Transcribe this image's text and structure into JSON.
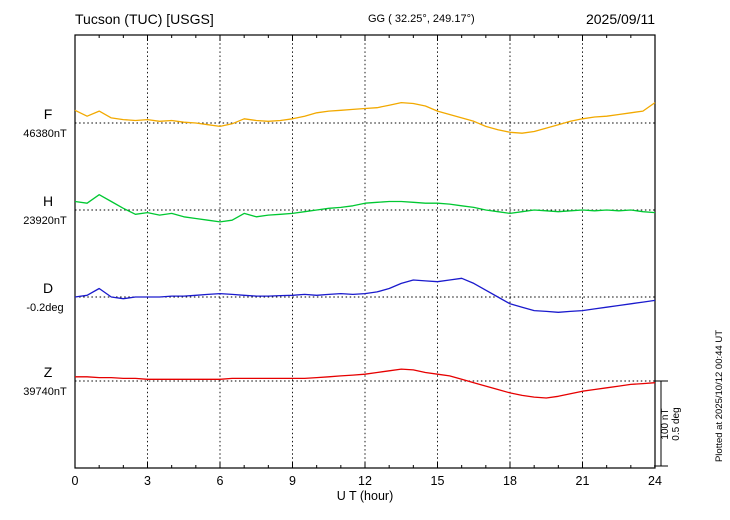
{
  "header": {
    "station": "Tucson (TUC)  [USGS]",
    "gg": "GG ( 32.25°, 249.17°)",
    "date": "2025/09/11"
  },
  "xaxis": {
    "label": "U T (hour)",
    "min": 0,
    "max": 24,
    "ticks": [
      0,
      3,
      6,
      9,
      12,
      15,
      18,
      21,
      24
    ]
  },
  "scale_bar": {
    "line1": "100 nT",
    "line2": "0.5 deg"
  },
  "footer_note": "Plotted at 2025/10/12 00:44 UT",
  "chart_data": {
    "type": "line",
    "title": "Tucson (TUC) [USGS]",
    "xlabel": "U T (hour)",
    "x_range": [
      0,
      24
    ],
    "x_tick_interval": 3,
    "grid": "dotted vertical lines every 3 hours; dotted horizontal baseline per channel",
    "legend_position": "left-margin channel labels",
    "scale": {
      "nT_per_division": 100,
      "deg_per_division": 0.5
    },
    "series": [
      {
        "name": "F",
        "unit": "nT",
        "color": "#f2a900",
        "baseline": 46380,
        "baseline_label": "46380nT",
        "x_start": 0,
        "x_step": 0.5,
        "values": [
          46395,
          46388,
          46394,
          46386,
          46384,
          46383,
          46384,
          46382,
          46383,
          46381,
          46380,
          46378,
          46376,
          46379,
          46385,
          46383,
          46382,
          46383,
          46385,
          46388,
          46392,
          46394,
          46395,
          46396,
          46397,
          46398,
          46401,
          46404,
          46403,
          46400,
          46394,
          46390,
          46386,
          46382,
          46376,
          46372,
          46369,
          46368,
          46370,
          46374,
          46378,
          46382,
          46385,
          46387,
          46388,
          46390,
          46392,
          46394,
          46404
        ]
      },
      {
        "name": "H",
        "unit": "nT",
        "color": "#00c832",
        "baseline": 23920,
        "baseline_label": "23920nT",
        "x_start": 0,
        "x_step": 0.5,
        "values": [
          23930,
          23928,
          23938,
          23930,
          23922,
          23915,
          23917,
          23914,
          23916,
          23912,
          23910,
          23908,
          23906,
          23908,
          23916,
          23912,
          23914,
          23915,
          23916,
          23918,
          23920,
          23922,
          23923,
          23925,
          23928,
          23929,
          23930,
          23930,
          23929,
          23928,
          23928,
          23927,
          23925,
          23923,
          23920,
          23918,
          23916,
          23918,
          23920,
          23919,
          23918,
          23919,
          23920,
          23919,
          23920,
          23919,
          23920,
          23918,
          23917
        ]
      },
      {
        "name": "D",
        "unit": "deg",
        "color": "#1a1acd",
        "baseline": -0.2,
        "baseline_label": "-0.2deg",
        "x_start": 0,
        "x_step": 0.5,
        "values": [
          -0.2,
          -0.19,
          -0.15,
          -0.2,
          -0.21,
          -0.2,
          -0.2,
          -0.2,
          -0.195,
          -0.195,
          -0.19,
          -0.185,
          -0.18,
          -0.185,
          -0.19,
          -0.195,
          -0.195,
          -0.192,
          -0.19,
          -0.185,
          -0.19,
          -0.185,
          -0.18,
          -0.185,
          -0.18,
          -0.17,
          -0.15,
          -0.12,
          -0.1,
          -0.105,
          -0.11,
          -0.1,
          -0.09,
          -0.12,
          -0.16,
          -0.2,
          -0.24,
          -0.26,
          -0.28,
          -0.285,
          -0.29,
          -0.285,
          -0.28,
          -0.27,
          -0.26,
          -0.25,
          -0.24,
          -0.23,
          -0.22
        ]
      },
      {
        "name": "Z",
        "unit": "nT",
        "color": "#e60000",
        "baseline": 39740,
        "baseline_label": "39740nT",
        "x_start": 0,
        "x_step": 0.5,
        "values": [
          39745,
          39745,
          39744,
          39744,
          39743,
          39743,
          39742,
          39742,
          39742,
          39742,
          39742,
          39742,
          39742,
          39743,
          39743,
          39743,
          39743,
          39743,
          39743,
          39743,
          39744,
          39745,
          39746,
          39747,
          39748,
          39750,
          39752,
          39754,
          39753,
          39750,
          39748,
          39746,
          39742,
          39738,
          39734,
          39730,
          39726,
          39723,
          39721,
          39720,
          39722,
          39725,
          39728,
          39730,
          39732,
          39734,
          39736,
          39737,
          39738
        ]
      }
    ]
  }
}
